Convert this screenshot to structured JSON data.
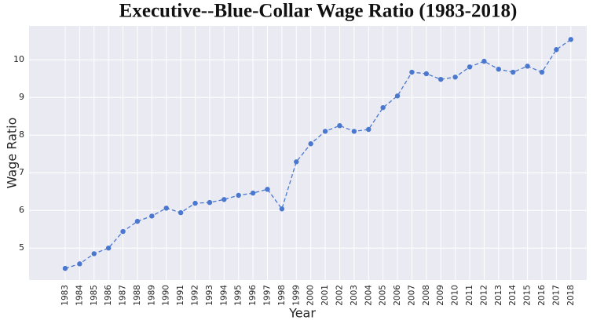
{
  "chart_data": {
    "type": "line",
    "title": "Executive--Blue-Collar Wage Ratio (1983-2018)",
    "xlabel": "Year",
    "ylabel": "Wage Ratio",
    "x": [
      1983,
      1984,
      1985,
      1986,
      1987,
      1988,
      1989,
      1990,
      1991,
      1992,
      1993,
      1994,
      1995,
      1996,
      1997,
      1998,
      1999,
      2000,
      2001,
      2002,
      2003,
      2004,
      2005,
      2006,
      2007,
      2008,
      2009,
      2010,
      2011,
      2012,
      2013,
      2014,
      2015,
      2016,
      2017,
      2018
    ],
    "series": [
      {
        "name": "Wage Ratio",
        "color": "#4a78cf",
        "values": [
          4.46,
          4.58,
          4.85,
          5.0,
          5.44,
          5.71,
          5.85,
          6.06,
          5.94,
          6.19,
          6.21,
          6.29,
          6.4,
          6.46,
          6.56,
          6.04,
          7.29,
          7.77,
          8.1,
          8.25,
          8.1,
          8.15,
          8.73,
          9.04,
          9.67,
          9.63,
          9.48,
          9.54,
          9.81,
          9.96,
          9.75,
          9.67,
          9.83,
          9.67,
          10.27,
          10.54
        ]
      }
    ],
    "xlim": [
      1980.5,
      2019.1
    ],
    "xticks": [
      1983,
      1984,
      1985,
      1986,
      1987,
      1988,
      1989,
      1990,
      1991,
      1992,
      1993,
      1994,
      1995,
      1996,
      1997,
      1998,
      1999,
      2000,
      2001,
      2002,
      2003,
      2004,
      2005,
      2006,
      2007,
      2008,
      2009,
      2010,
      2011,
      2012,
      2013,
      2014,
      2015,
      2016,
      2017,
      2018
    ],
    "ylim": [
      4.15,
      10.9
    ],
    "yticks": [
      5,
      6,
      7,
      8,
      9,
      10
    ],
    "grid": true
  }
}
